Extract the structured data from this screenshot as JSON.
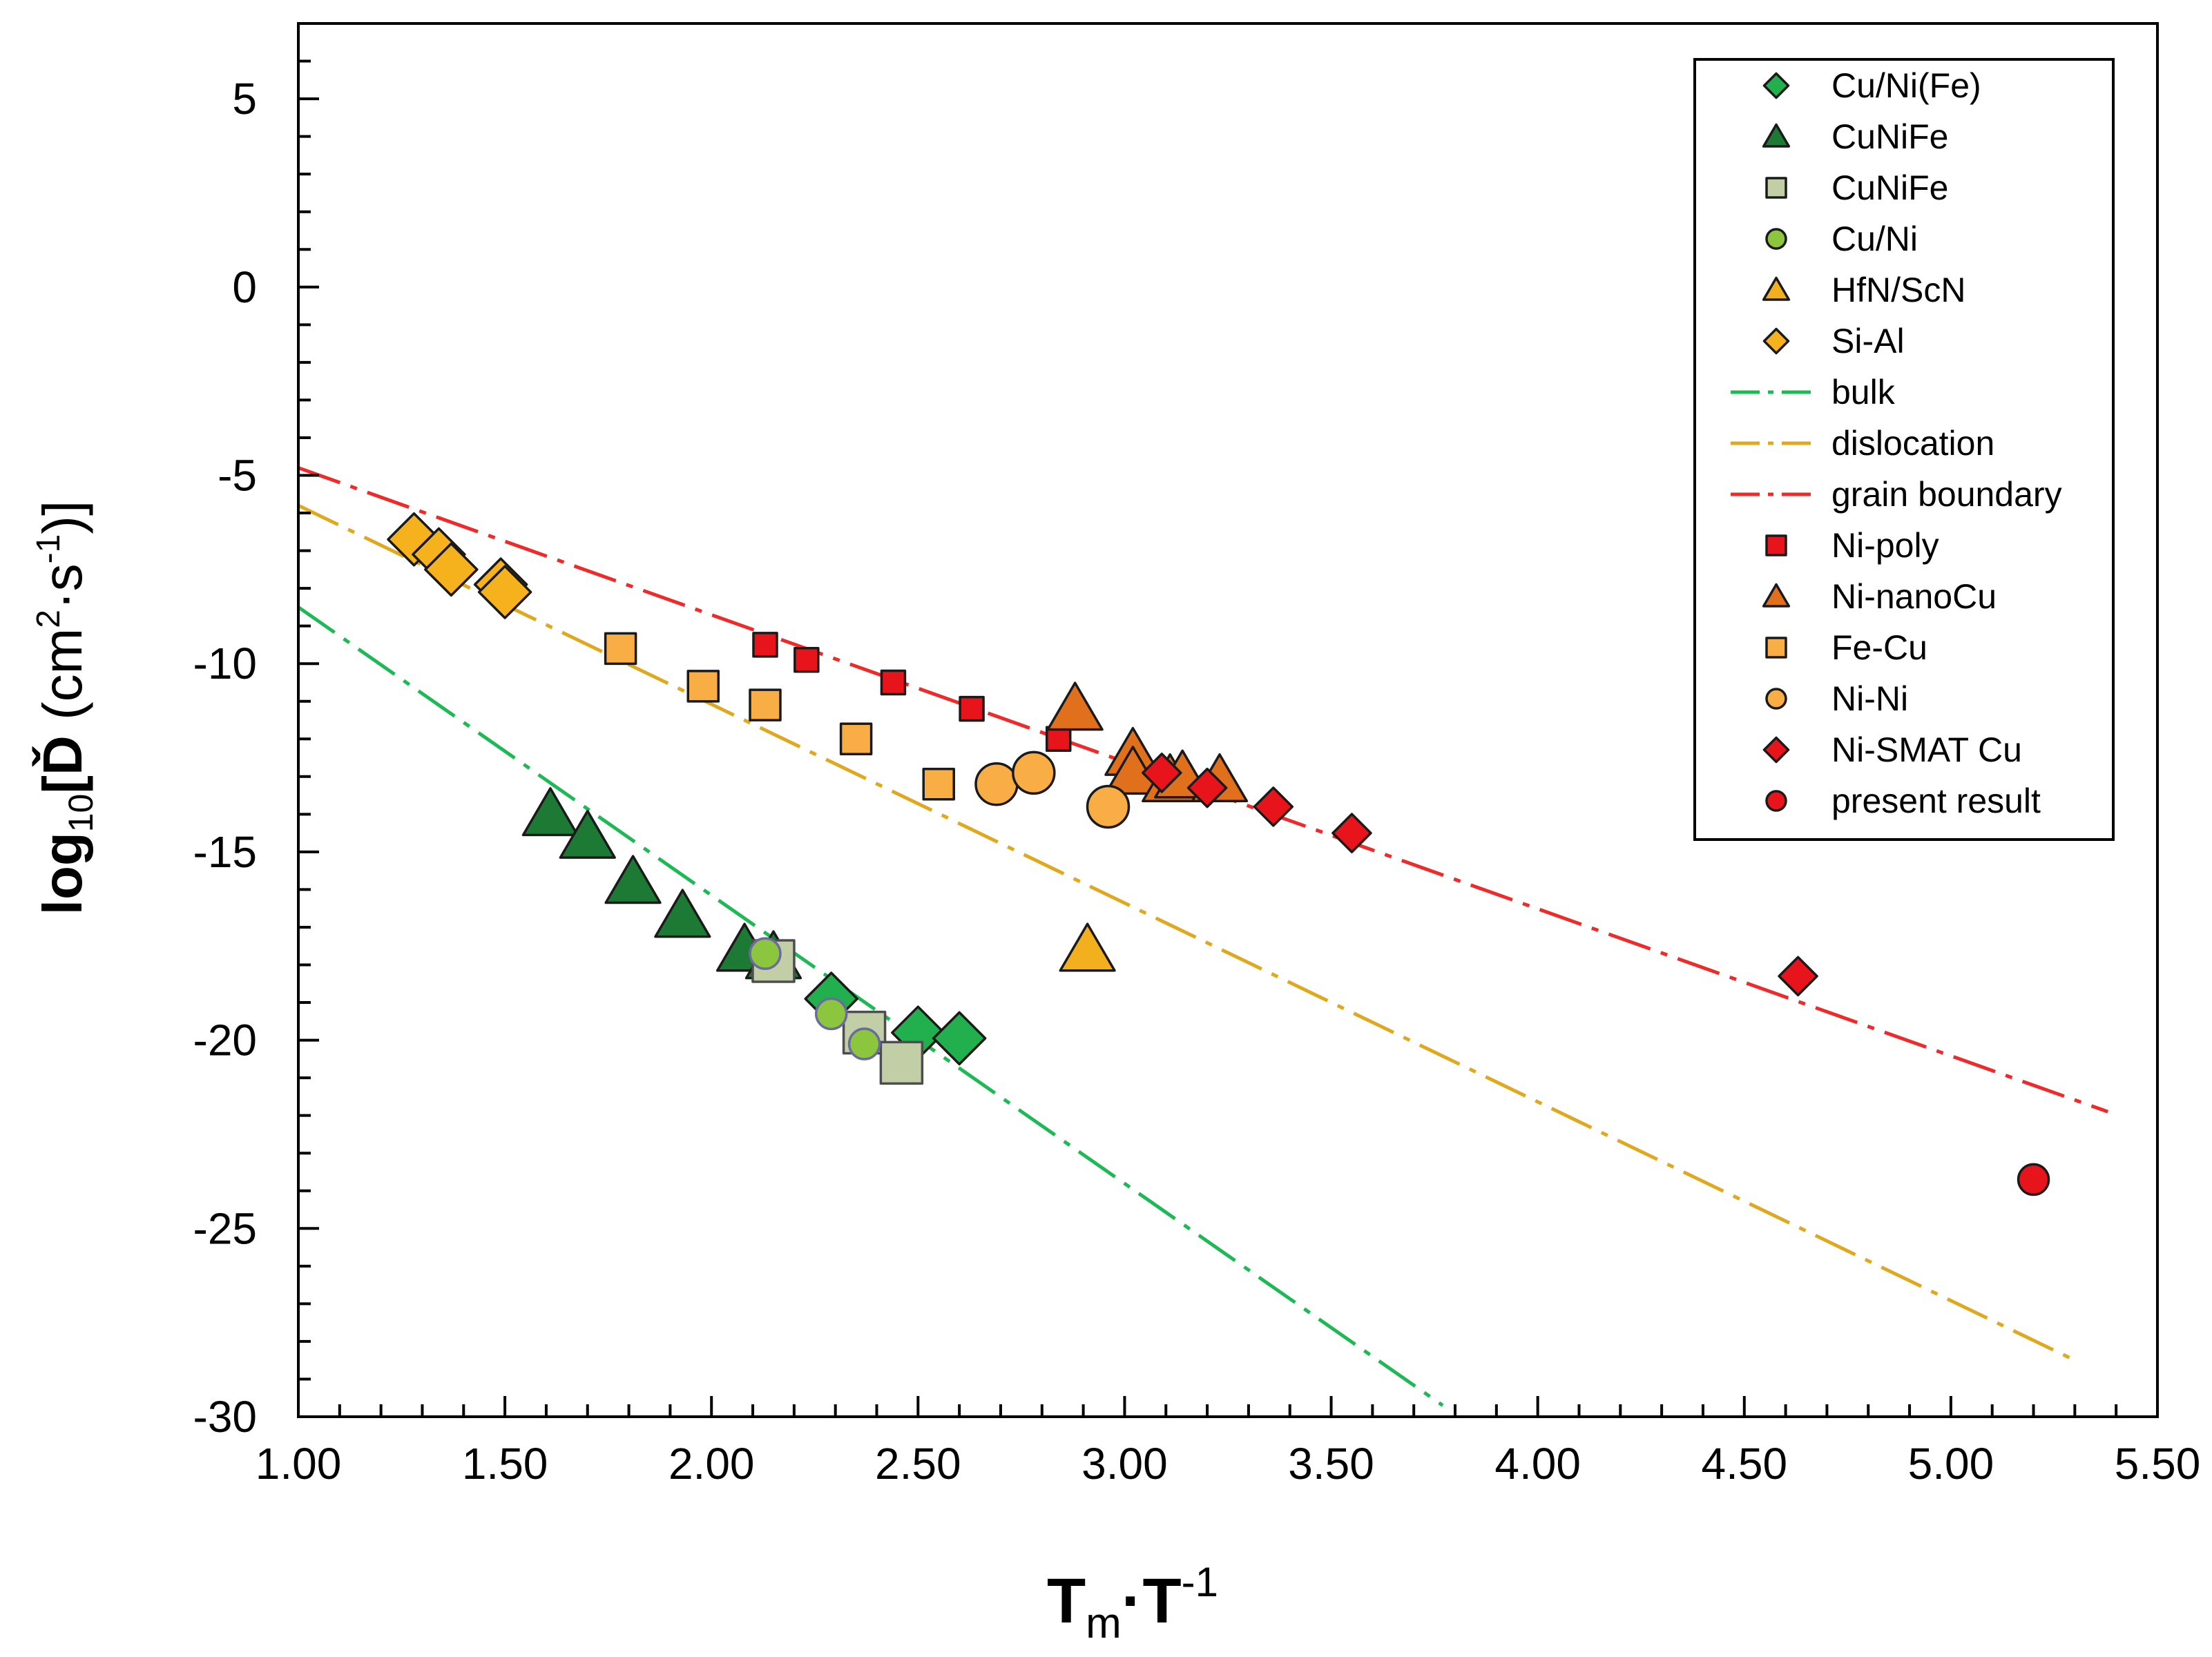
{
  "chart_data": {
    "type": "scatter",
    "title": "",
    "xlabel": {
      "main": "T",
      "sub": "m",
      "middle": "·T",
      "sup": "-1"
    },
    "ylabel": {
      "pre": "log",
      "sub": "10",
      "bracket_open": "[",
      "symbol": "Ď",
      "units_open": " (cm",
      "sup1": "2",
      "units_mid": "·s",
      "sup2": "-1",
      "units_close": ")]"
    },
    "xlim": [
      1.0,
      5.5
    ],
    "ylim": [
      -30,
      7
    ],
    "xticks": [
      1.0,
      1.5,
      2.0,
      2.5,
      3.0,
      3.5,
      4.0,
      4.5,
      5.0,
      5.5
    ],
    "xtick_labels": [
      "1.00",
      "1.50",
      "2.00",
      "2.50",
      "3.00",
      "3.50",
      "4.00",
      "4.50",
      "5.00",
      "5.50"
    ],
    "yticks": [
      5,
      0,
      -5,
      -10,
      -15,
      -20,
      -25,
      -30
    ],
    "ytick_labels": [
      "5",
      "0",
      "-5",
      "-10",
      "-15",
      "-20",
      "-25",
      "-30"
    ],
    "grid": false,
    "legend_position": "top-right",
    "series": [
      {
        "name": "Cu/Ni(Fe)",
        "marker": "diamond",
        "fill": "#22b04e",
        "stroke": "#1a1a1a",
        "size": "large",
        "points": [
          [
            2.29,
            -18.9
          ],
          [
            2.5,
            -19.8
          ],
          [
            2.6,
            -19.95
          ]
        ]
      },
      {
        "name": "CuNiFe",
        "marker": "triangle",
        "fill": "#1d7a35",
        "stroke": "#1a1a1a",
        "size": "large",
        "points": [
          [
            1.61,
            -14.0
          ],
          [
            1.7,
            -14.6
          ],
          [
            1.81,
            -15.8
          ],
          [
            1.93,
            -16.7
          ],
          [
            2.08,
            -17.6
          ],
          [
            2.15,
            -17.8
          ]
        ]
      },
      {
        "name": "CuNiFe",
        "marker": "square",
        "fill": "#c2cfa6",
        "stroke": "#4d4d4d",
        "size": "large",
        "points": [
          [
            2.15,
            -17.9
          ],
          [
            2.37,
            -19.8
          ],
          [
            2.46,
            -20.6
          ]
        ]
      },
      {
        "name": "Cu/Ni",
        "marker": "circle",
        "fill": "#8cc63f",
        "stroke": "#6b6b9e",
        "size": "medium",
        "points": [
          [
            2.13,
            -17.7
          ],
          [
            2.29,
            -19.3
          ],
          [
            2.37,
            -20.1
          ]
        ]
      },
      {
        "name": "HfN/ScN",
        "marker": "triangle",
        "fill": "#f2b01e",
        "stroke": "#1a1a1a",
        "size": "large",
        "points": [
          [
            2.91,
            -17.6
          ]
        ]
      },
      {
        "name": "Si-Al",
        "marker": "diamond",
        "fill": "#f5b21c",
        "stroke": "#1a1a1a",
        "size": "large",
        "points": [
          [
            1.28,
            -6.7
          ],
          [
            1.34,
            -7.1
          ],
          [
            1.37,
            -7.5
          ],
          [
            1.49,
            -7.9
          ],
          [
            1.5,
            -8.1
          ]
        ]
      },
      {
        "name": "Ni-poly",
        "marker": "square",
        "fill": "#e8141c",
        "stroke": "#1a1a1a",
        "size": "small",
        "points": [
          [
            2.13,
            -9.5
          ],
          [
            2.23,
            -9.9
          ],
          [
            2.44,
            -10.5
          ],
          [
            2.63,
            -11.2
          ],
          [
            2.84,
            -12.0
          ]
        ]
      },
      {
        "name": "Ni-nanoCu",
        "marker": "triangle",
        "fill": "#e0701c",
        "stroke": "#1a1a1a",
        "size": "large",
        "points": [
          [
            2.88,
            -11.2
          ],
          [
            3.02,
            -12.4
          ],
          [
            3.02,
            -12.9
          ],
          [
            3.11,
            -13.1
          ],
          [
            3.14,
            -13.0
          ],
          [
            3.23,
            -13.1
          ]
        ]
      },
      {
        "name": "Fe-Cu",
        "marker": "square",
        "fill": "#f9ad45",
        "stroke": "#1a1a1a",
        "size": "medium",
        "points": [
          [
            1.78,
            -9.6
          ],
          [
            1.98,
            -10.6
          ],
          [
            2.13,
            -11.1
          ],
          [
            2.35,
            -12.0
          ],
          [
            2.55,
            -13.2
          ]
        ]
      },
      {
        "name": "Ni-Ni",
        "marker": "circle",
        "fill": "#f9ad45",
        "stroke": "#1a1a1a",
        "size": "large",
        "points": [
          [
            2.69,
            -13.2
          ],
          [
            2.78,
            -12.9
          ],
          [
            2.96,
            -13.8
          ]
        ]
      },
      {
        "name": "Ni-SMAT Cu",
        "marker": "diamond",
        "fill": "#e8141c",
        "stroke": "#1a1a1a",
        "size": "medium",
        "points": [
          [
            3.09,
            -12.9
          ],
          [
            3.2,
            -13.3
          ],
          [
            3.36,
            -13.8
          ],
          [
            3.55,
            -14.5
          ],
          [
            4.63,
            -18.3
          ]
        ]
      },
      {
        "name": "present result",
        "marker": "circle",
        "fill": "#e8141c",
        "stroke": "#1a1a1a",
        "size": "medium",
        "points": [
          [
            5.2,
            -23.7
          ]
        ]
      }
    ],
    "lines": [
      {
        "name": "bulk",
        "color": "#1db954",
        "style": "dash-dot",
        "points": [
          [
            1.0,
            -8.5
          ],
          [
            3.77,
            -29.7
          ]
        ]
      },
      {
        "name": "dislocation",
        "color": "#e0a81e",
        "style": "dash-dot",
        "points": [
          [
            1.0,
            -5.8
          ],
          [
            5.3,
            -28.5
          ]
        ]
      },
      {
        "name": "grain boundary",
        "color": "#ee2a2a",
        "style": "dash-dot",
        "points": [
          [
            1.0,
            -4.8
          ],
          [
            5.38,
            -21.9
          ]
        ]
      }
    ],
    "legend_entries": [
      {
        "label": "Cu/Ni(Fe)",
        "kind": "marker",
        "marker": "diamond",
        "fill": "#22b04e"
      },
      {
        "label": "CuNiFe",
        "kind": "marker",
        "marker": "triangle",
        "fill": "#1d7a35"
      },
      {
        "label": "CuNiFe",
        "kind": "marker",
        "marker": "square",
        "fill": "#c2cfa6"
      },
      {
        "label": "Cu/Ni",
        "kind": "marker",
        "marker": "circle",
        "fill": "#8cc63f"
      },
      {
        "label": "HfN/ScN",
        "kind": "marker",
        "marker": "triangle",
        "fill": "#f2b01e"
      },
      {
        "label": "Si-Al",
        "kind": "marker",
        "marker": "diamond",
        "fill": "#f5b21c"
      },
      {
        "label": "bulk",
        "kind": "line",
        "color": "#1db954"
      },
      {
        "label": "dislocation",
        "kind": "line",
        "color": "#e0a81e"
      },
      {
        "label": "grain boundary",
        "kind": "line",
        "color": "#ee2a2a"
      },
      {
        "label": "Ni-poly",
        "kind": "marker",
        "marker": "square",
        "fill": "#e8141c"
      },
      {
        "label": "Ni-nanoCu",
        "kind": "marker",
        "marker": "triangle",
        "fill": "#e0701c"
      },
      {
        "label": "Fe-Cu",
        "kind": "marker",
        "marker": "square",
        "fill": "#f9ad45"
      },
      {
        "label": "Ni-Ni",
        "kind": "marker",
        "marker": "circle",
        "fill": "#f9ad45"
      },
      {
        "label": "Ni-SMAT Cu",
        "kind": "marker",
        "marker": "diamond",
        "fill": "#e8141c"
      },
      {
        "label": "present result",
        "kind": "marker",
        "marker": "circle",
        "fill": "#e8141c"
      }
    ]
  }
}
